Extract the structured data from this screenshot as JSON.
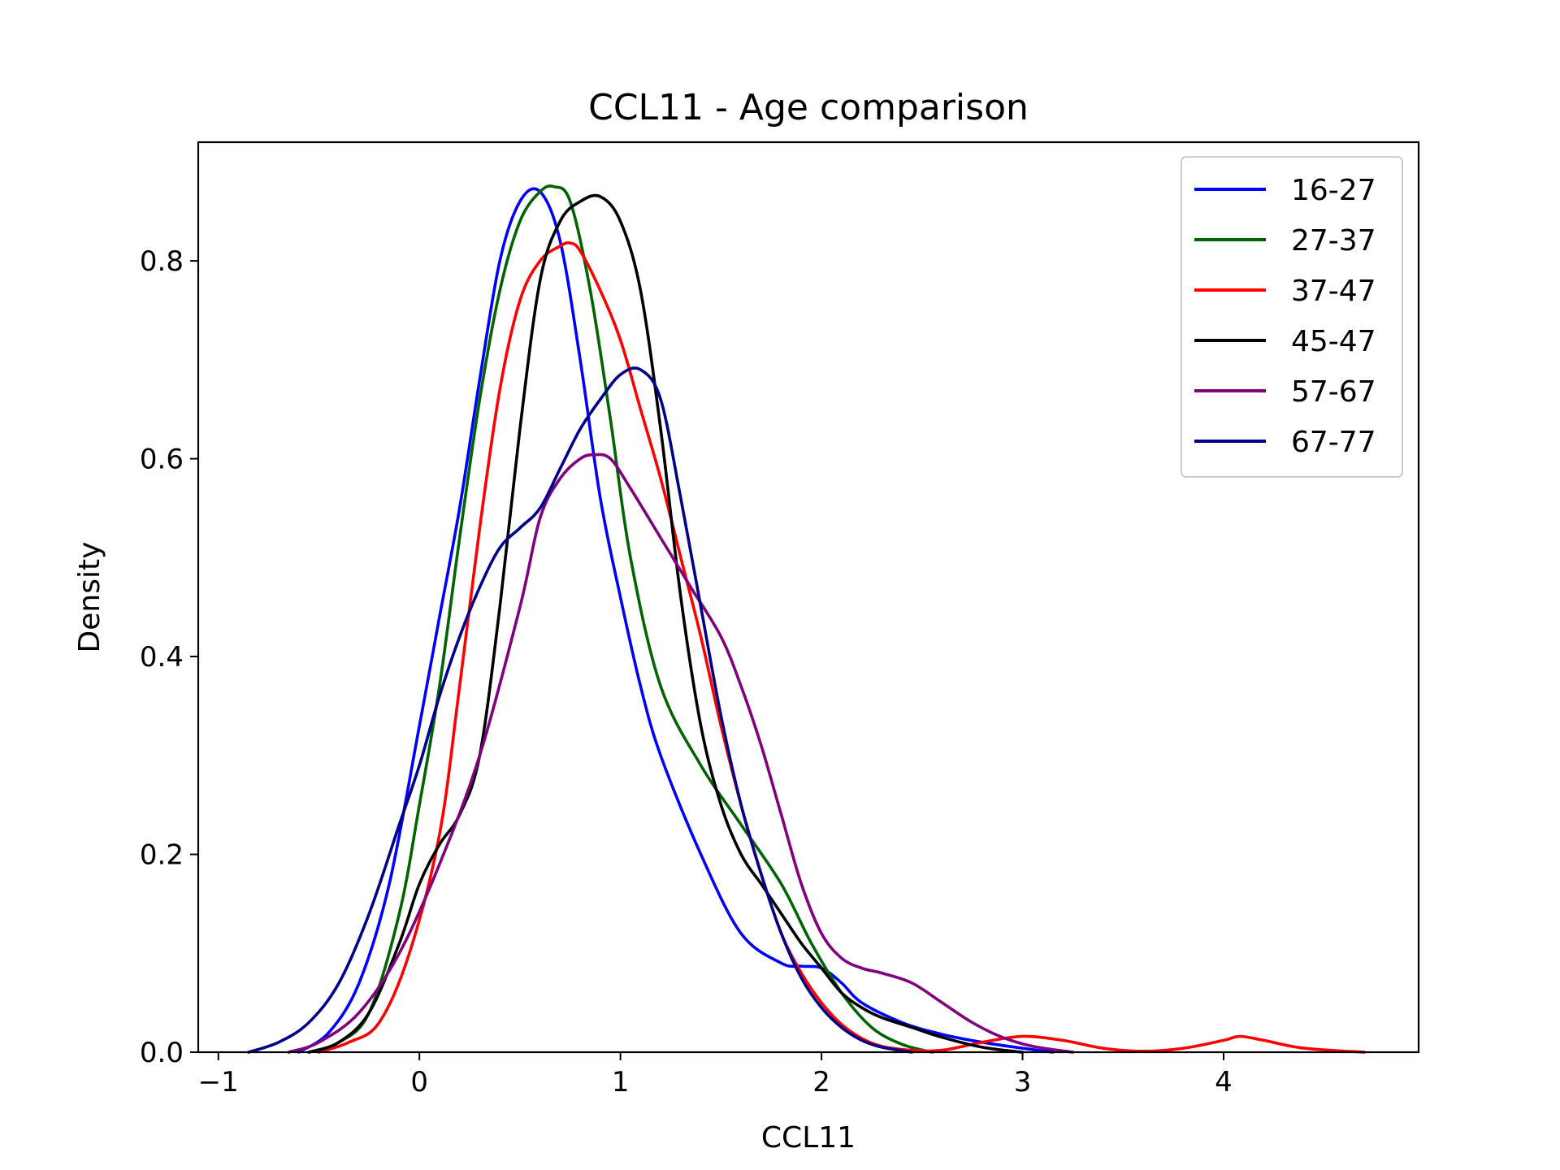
{
  "chart_data": {
    "type": "line",
    "title": "CCL11 - Age comparison",
    "xlabel": "CCL11",
    "ylabel": "Density",
    "xlim": [
      -1.1,
      4.97
    ],
    "ylim": [
      0,
      0.92
    ],
    "x_ticks": [
      -1,
      0,
      1,
      2,
      3,
      4
    ],
    "x_tick_labels": [
      "−1",
      "0",
      "1",
      "2",
      "3",
      "4"
    ],
    "y_ticks": [
      0.0,
      0.2,
      0.4,
      0.6,
      0.8
    ],
    "y_tick_labels": [
      "0.0",
      "0.2",
      "0.4",
      "0.6",
      "0.8"
    ],
    "grid": false,
    "legend_position": "top-right",
    "series": [
      {
        "name": "16-27",
        "color": "#0000ff",
        "x": [
          -0.6,
          -0.45,
          -0.3,
          -0.15,
          0.0,
          0.1,
          0.2,
          0.3,
          0.4,
          0.5,
          0.6,
          0.7,
          0.8,
          0.9,
          1.0,
          1.1,
          1.2,
          1.4,
          1.6,
          1.8,
          1.9,
          2.0,
          2.1,
          2.2,
          2.4,
          2.6,
          2.8,
          3.0,
          3.15
        ],
        "values": [
          0.0,
          0.02,
          0.07,
          0.17,
          0.33,
          0.44,
          0.55,
          0.68,
          0.8,
          0.86,
          0.87,
          0.82,
          0.7,
          0.56,
          0.46,
          0.37,
          0.3,
          0.2,
          0.12,
          0.09,
          0.087,
          0.085,
          0.07,
          0.05,
          0.03,
          0.018,
          0.01,
          0.004,
          0.0
        ]
      },
      {
        "name": "27-37",
        "color": "#006400",
        "x": [
          -0.55,
          -0.4,
          -0.25,
          -0.1,
          0.0,
          0.1,
          0.2,
          0.3,
          0.4,
          0.5,
          0.6,
          0.67,
          0.75,
          0.85,
          0.95,
          1.05,
          1.2,
          1.4,
          1.6,
          1.8,
          1.95,
          2.1,
          2.25,
          2.4,
          2.55
        ],
        "values": [
          0.0,
          0.01,
          0.04,
          0.14,
          0.25,
          0.37,
          0.52,
          0.66,
          0.77,
          0.84,
          0.87,
          0.875,
          0.86,
          0.77,
          0.64,
          0.5,
          0.37,
          0.29,
          0.23,
          0.17,
          0.11,
          0.06,
          0.025,
          0.008,
          0.0
        ]
      },
      {
        "name": "37-47",
        "color": "#ff0000",
        "x": [
          -0.5,
          -0.35,
          -0.2,
          -0.05,
          0.1,
          0.2,
          0.3,
          0.4,
          0.5,
          0.6,
          0.7,
          0.75,
          0.8,
          0.9,
          1.0,
          1.1,
          1.2,
          1.3,
          1.4,
          1.5,
          1.6,
          1.7,
          1.8,
          1.9,
          2.0,
          2.1,
          2.2,
          2.3,
          2.45,
          2.6,
          2.8,
          3.0,
          3.2,
          3.4,
          3.6,
          3.8,
          4.0,
          4.08,
          4.2,
          4.4,
          4.7
        ],
        "values": [
          0.0,
          0.01,
          0.03,
          0.1,
          0.22,
          0.37,
          0.53,
          0.67,
          0.76,
          0.8,
          0.815,
          0.818,
          0.81,
          0.77,
          0.72,
          0.65,
          0.58,
          0.5,
          0.42,
          0.33,
          0.25,
          0.18,
          0.12,
          0.08,
          0.05,
          0.028,
          0.014,
          0.006,
          0.002,
          0.002,
          0.01,
          0.016,
          0.012,
          0.004,
          0.001,
          0.004,
          0.012,
          0.016,
          0.012,
          0.004,
          0.0
        ]
      },
      {
        "name": "45-47",
        "color": "#000000",
        "x": [
          -0.55,
          -0.4,
          -0.25,
          -0.1,
          0.0,
          0.1,
          0.2,
          0.3,
          0.4,
          0.5,
          0.6,
          0.7,
          0.8,
          0.9,
          1.0,
          1.1,
          1.2,
          1.3,
          1.4,
          1.5,
          1.6,
          1.7,
          1.8,
          1.9,
          2.0,
          2.1,
          2.2,
          2.3,
          2.45,
          2.6,
          2.8,
          3.0
        ],
        "values": [
          0.0,
          0.01,
          0.04,
          0.11,
          0.17,
          0.21,
          0.24,
          0.3,
          0.45,
          0.63,
          0.78,
          0.84,
          0.86,
          0.865,
          0.84,
          0.77,
          0.63,
          0.46,
          0.33,
          0.25,
          0.2,
          0.17,
          0.14,
          0.11,
          0.085,
          0.06,
          0.045,
          0.035,
          0.025,
          0.015,
          0.005,
          0.0
        ]
      },
      {
        "name": "57-67",
        "color": "#800080",
        "x": [
          -0.65,
          -0.5,
          -0.3,
          -0.1,
          0.1,
          0.3,
          0.5,
          0.6,
          0.7,
          0.8,
          0.87,
          0.95,
          1.05,
          1.2,
          1.35,
          1.5,
          1.6,
          1.7,
          1.8,
          1.9,
          2.0,
          2.1,
          2.2,
          2.3,
          2.45,
          2.6,
          2.75,
          2.9,
          3.05,
          3.25
        ],
        "values": [
          0.0,
          0.01,
          0.04,
          0.1,
          0.19,
          0.3,
          0.45,
          0.54,
          0.58,
          0.6,
          0.604,
          0.6,
          0.57,
          0.52,
          0.47,
          0.42,
          0.37,
          0.31,
          0.24,
          0.17,
          0.12,
          0.095,
          0.085,
          0.08,
          0.07,
          0.05,
          0.03,
          0.015,
          0.006,
          0.0
        ]
      },
      {
        "name": "67-77",
        "color": "#00008b",
        "x": [
          -0.85,
          -0.7,
          -0.55,
          -0.4,
          -0.25,
          -0.1,
          0.0,
          0.1,
          0.2,
          0.3,
          0.4,
          0.5,
          0.6,
          0.7,
          0.8,
          0.9,
          1.0,
          1.1,
          1.2,
          1.3,
          1.4,
          1.5,
          1.6,
          1.7,
          1.8,
          1.9,
          2.0,
          2.1,
          2.2,
          2.3,
          2.45
        ],
        "values": [
          0.0,
          0.01,
          0.03,
          0.07,
          0.14,
          0.23,
          0.29,
          0.36,
          0.42,
          0.47,
          0.51,
          0.53,
          0.55,
          0.59,
          0.63,
          0.66,
          0.685,
          0.69,
          0.66,
          0.56,
          0.45,
          0.34,
          0.25,
          0.18,
          0.12,
          0.075,
          0.045,
          0.025,
          0.012,
          0.005,
          0.0
        ]
      }
    ]
  }
}
